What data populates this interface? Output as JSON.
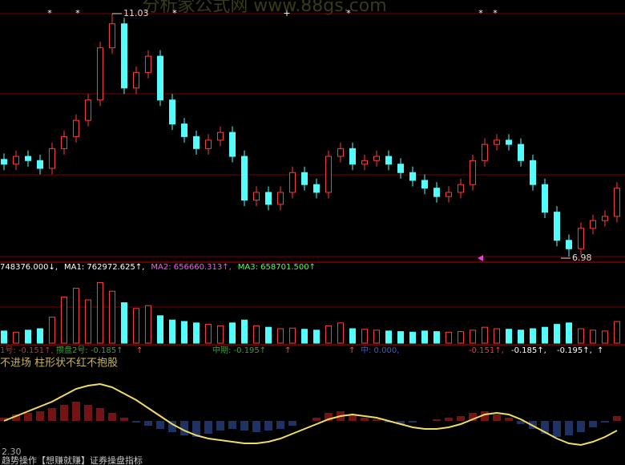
{
  "watermark": "分析家公式网 www.88gs.com",
  "footer": {
    "level": "2.30",
    "caption": "趋势操作【想赚就赚】证券操盘指标"
  },
  "chart_data": [
    {
      "type": "candlestick",
      "up_color": "#ff3c3c",
      "down_color": "#54fcfc",
      "opens": [
        8.6,
        8.52,
        8.65,
        8.58,
        8.45,
        8.78,
        8.98,
        9.25,
        9.59,
        10.46,
        10.86,
        9.79,
        10.05,
        10.32,
        9.59,
        9.19,
        8.98,
        8.78,
        8.92,
        9.05,
        8.65,
        7.92,
        8.05,
        7.85,
        8.05,
        8.38,
        8.18,
        8.05,
        8.65,
        8.78,
        8.52,
        8.58,
        8.65,
        8.52,
        8.38,
        8.25,
        8.12,
        7.98,
        8.05,
        8.18,
        8.58,
        8.85,
        8.92,
        8.85,
        8.58,
        8.18,
        7.72,
        7.25,
        7.11,
        7.45,
        7.58,
        7.65
      ],
      "closes": [
        8.52,
        8.65,
        8.58,
        8.45,
        8.78,
        8.98,
        9.25,
        9.59,
        10.46,
        10.86,
        9.79,
        10.05,
        10.32,
        9.59,
        9.19,
        8.98,
        8.78,
        8.92,
        9.05,
        8.65,
        7.92,
        8.05,
        7.85,
        8.05,
        8.38,
        8.18,
        8.05,
        8.65,
        8.78,
        8.52,
        8.58,
        8.65,
        8.52,
        8.38,
        8.25,
        8.12,
        7.98,
        8.05,
        8.18,
        8.58,
        8.85,
        8.92,
        8.85,
        8.58,
        8.18,
        7.72,
        7.25,
        7.11,
        7.45,
        7.58,
        7.65,
        8.12
      ],
      "highs": [
        8.7,
        8.75,
        8.75,
        8.68,
        8.88,
        9.08,
        9.35,
        9.69,
        10.56,
        11.03,
        10.96,
        10.15,
        10.42,
        10.42,
        9.69,
        9.29,
        9.08,
        9.02,
        9.15,
        9.15,
        8.75,
        8.15,
        8.15,
        8.15,
        8.48,
        8.48,
        8.28,
        8.75,
        8.88,
        8.88,
        8.68,
        8.75,
        8.75,
        8.62,
        8.48,
        8.35,
        8.22,
        8.15,
        8.28,
        8.68,
        8.95,
        9.02,
        9.02,
        8.95,
        8.68,
        8.28,
        7.82,
        7.35,
        7.55,
        7.68,
        7.75,
        8.22
      ],
      "lows": [
        8.42,
        8.42,
        8.48,
        8.35,
        8.35,
        8.68,
        8.88,
        9.15,
        9.49,
        10.36,
        9.69,
        9.69,
        9.95,
        9.49,
        9.09,
        8.88,
        8.68,
        8.68,
        8.82,
        8.55,
        7.82,
        7.82,
        7.75,
        7.75,
        7.95,
        8.08,
        7.95,
        7.95,
        8.55,
        8.42,
        8.42,
        8.48,
        8.42,
        8.28,
        8.15,
        8.02,
        7.88,
        7.88,
        7.95,
        8.08,
        8.48,
        8.75,
        8.75,
        8.48,
        8.08,
        7.62,
        7.15,
        6.98,
        7.01,
        7.35,
        7.48,
        7.55
      ]
    },
    {
      "type": "bar",
      "header": [
        {
          "text": "748376.000↓,",
          "color": "#ffffff"
        },
        {
          "text": "MA1: 762972.625↑,",
          "color": "#ffffff"
        },
        {
          "text": "MA2: 656660.313↑,",
          "color": "#ff54ff"
        },
        {
          "text": "MA3: 658701.500↑",
          "color": "#54ff54"
        }
      ],
      "ylim": [
        0,
        2500000
      ],
      "values": [
        420000,
        380000,
        450000,
        500000,
        900000,
        1600000,
        1900000,
        1500000,
        2100000,
        1800000,
        1400000,
        1200000,
        1300000,
        950000,
        800000,
        750000,
        700000,
        650000,
        600000,
        700000,
        800000,
        600000,
        550000,
        500000,
        520000,
        480000,
        450000,
        600000,
        700000,
        500000,
        480000,
        450000,
        420000,
        400000,
        380000,
        420000,
        400000,
        380000,
        400000,
        450000,
        550000,
        500000,
        480000,
        450000,
        500000,
        550000,
        650000,
        700000,
        500000,
        450000,
        420000,
        748376
      ]
    },
    {
      "type": "indicator",
      "note": "不进场  柱形状不红不抱股",
      "header": [
        {
          "text": "1号: -0.151↑,",
          "color": "#c83232"
        },
        {
          "text": "攒盘2号: -0.185↑",
          "color": "#3ca03c"
        },
        {
          "text": "↑",
          "color": "#ff5a3c"
        },
        {
          "text": "中期: -0.195↑",
          "color": "#3ca03c"
        },
        {
          "text": "↑",
          "color": "#ff5a3c"
        },
        {
          "text": "↑",
          "color": "#ff5a3c"
        },
        {
          "text": "中: 0.000,",
          "color": "#3c5ac8"
        },
        {
          "text": "-0.151↑,",
          "color": "#ff3232"
        },
        {
          "text": "-0.185↑,",
          "color": "#ffffff"
        },
        {
          "text": "-0.195↑,",
          "color": "#ffffff"
        },
        {
          "text": "↑",
          "color": "#ffffff"
        }
      ],
      "ylim": [
        -0.2,
        0.3
      ],
      "up_color": "#e62828",
      "down_color": "#3c64c8",
      "line_color": "#f0dc64",
      "values": [
        0.02,
        0.04,
        0.05,
        0.06,
        0.08,
        0.1,
        0.12,
        0.1,
        0.08,
        0.05,
        0.02,
        -0.01,
        -0.03,
        -0.05,
        -0.07,
        -0.09,
        -0.1,
        -0.08,
        -0.06,
        -0.05,
        -0.06,
        -0.07,
        -0.06,
        -0.05,
        -0.03,
        0.0,
        0.02,
        0.05,
        0.06,
        0.04,
        0.02,
        0.01,
        -0.01,
        -0.02,
        -0.01,
        0.0,
        0.01,
        0.02,
        0.03,
        0.05,
        0.06,
        0.04,
        0.02,
        -0.02,
        -0.05,
        -0.08,
        -0.1,
        -0.09,
        -0.07,
        -0.04,
        -0.01,
        0.03
      ],
      "line": [
        0.0,
        0.03,
        0.06,
        0.09,
        0.12,
        0.16,
        0.2,
        0.22,
        0.23,
        0.21,
        0.17,
        0.13,
        0.08,
        0.03,
        -0.02,
        -0.06,
        -0.09,
        -0.11,
        -0.12,
        -0.13,
        -0.14,
        -0.14,
        -0.13,
        -0.11,
        -0.08,
        -0.05,
        -0.02,
        0.01,
        0.03,
        0.04,
        0.03,
        0.02,
        0.0,
        -0.02,
        -0.04,
        -0.05,
        -0.05,
        -0.04,
        -0.02,
        0.01,
        0.04,
        0.05,
        0.04,
        0.01,
        -0.03,
        -0.07,
        -0.11,
        -0.14,
        -0.15,
        -0.13,
        -0.1,
        -0.06
      ]
    }
  ]
}
